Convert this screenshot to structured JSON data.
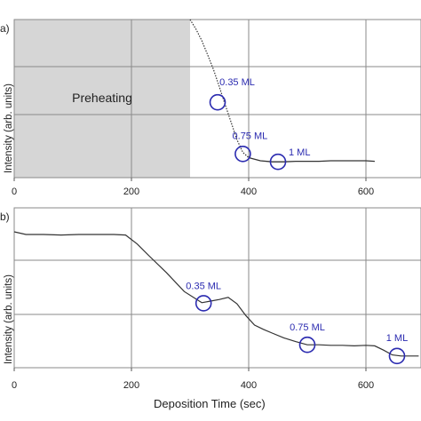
{
  "chart_data": [
    {
      "panel_label": "a)",
      "type": "line",
      "xlabel": "",
      "ylabel": "Intensity (arb. units)",
      "xlim": [
        0,
        700
      ],
      "ylim": [
        0,
        3
      ],
      "xticks": [
        0,
        200,
        400,
        600
      ],
      "grid": true,
      "shaded_region": {
        "x": [
          0,
          300
        ],
        "label": "Preheating",
        "color": "#d6d6d6"
      },
      "series": [
        {
          "x": [
            300,
            310,
            320,
            330,
            340,
            350,
            360,
            370,
            380,
            390,
            400,
            420,
            440,
            460,
            480,
            500,
            520,
            540,
            560,
            580,
            600,
            615
          ],
          "y": [
            3.0,
            2.82,
            2.6,
            2.33,
            2.05,
            1.72,
            1.38,
            1.05,
            0.72,
            0.48,
            0.38,
            0.32,
            0.3,
            0.3,
            0.31,
            0.31,
            0.31,
            0.32,
            0.32,
            0.32,
            0.32,
            0.31
          ],
          "color": "#333333",
          "style": "dotted-then-solid"
        }
      ],
      "annotations": [
        {
          "label": "0.35 ML",
          "x": 347,
          "y": 1.43
        },
        {
          "label": "0.75 ML",
          "x": 390,
          "y": 0.45
        },
        {
          "label": "1 ML",
          "x": 450,
          "y": 0.3
        }
      ]
    },
    {
      "panel_label": "b)",
      "type": "line",
      "xlabel": "Deposition Time (sec)",
      "ylabel": "Intensity (arb. units)",
      "xlim": [
        0,
        700
      ],
      "ylim": [
        0,
        3
      ],
      "xticks": [
        0,
        200,
        400,
        600
      ],
      "grid": true,
      "series": [
        {
          "x": [
            0,
            20,
            50,
            80,
            110,
            140,
            170,
            190,
            210,
            230,
            260,
            290,
            320,
            335,
            350,
            365,
            380,
            395,
            410,
            425,
            440,
            460,
            480,
            500,
            520,
            540,
            560,
            580,
            600,
            615,
            630,
            645,
            660,
            675,
            690
          ],
          "y": [
            2.55,
            2.5,
            2.5,
            2.49,
            2.5,
            2.5,
            2.5,
            2.49,
            2.32,
            2.1,
            1.78,
            1.43,
            1.22,
            1.25,
            1.28,
            1.32,
            1.2,
            0.98,
            0.8,
            0.72,
            0.65,
            0.56,
            0.49,
            0.43,
            0.43,
            0.42,
            0.42,
            0.41,
            0.42,
            0.41,
            0.33,
            0.24,
            0.22,
            0.22,
            0.22
          ],
          "color": "#333333",
          "style": "solid"
        }
      ],
      "annotations": [
        {
          "label": "0.35 ML",
          "x": 323,
          "y": 1.21
        },
        {
          "label": "0.75 ML",
          "x": 500,
          "y": 0.43
        },
        {
          "label": "1 ML",
          "x": 653,
          "y": 0.22
        }
      ]
    }
  ],
  "colors": {
    "annotation": "#2b2bb0",
    "line": "#333333",
    "grid": "#8a8a8a",
    "shade": "#d6d6d6"
  }
}
